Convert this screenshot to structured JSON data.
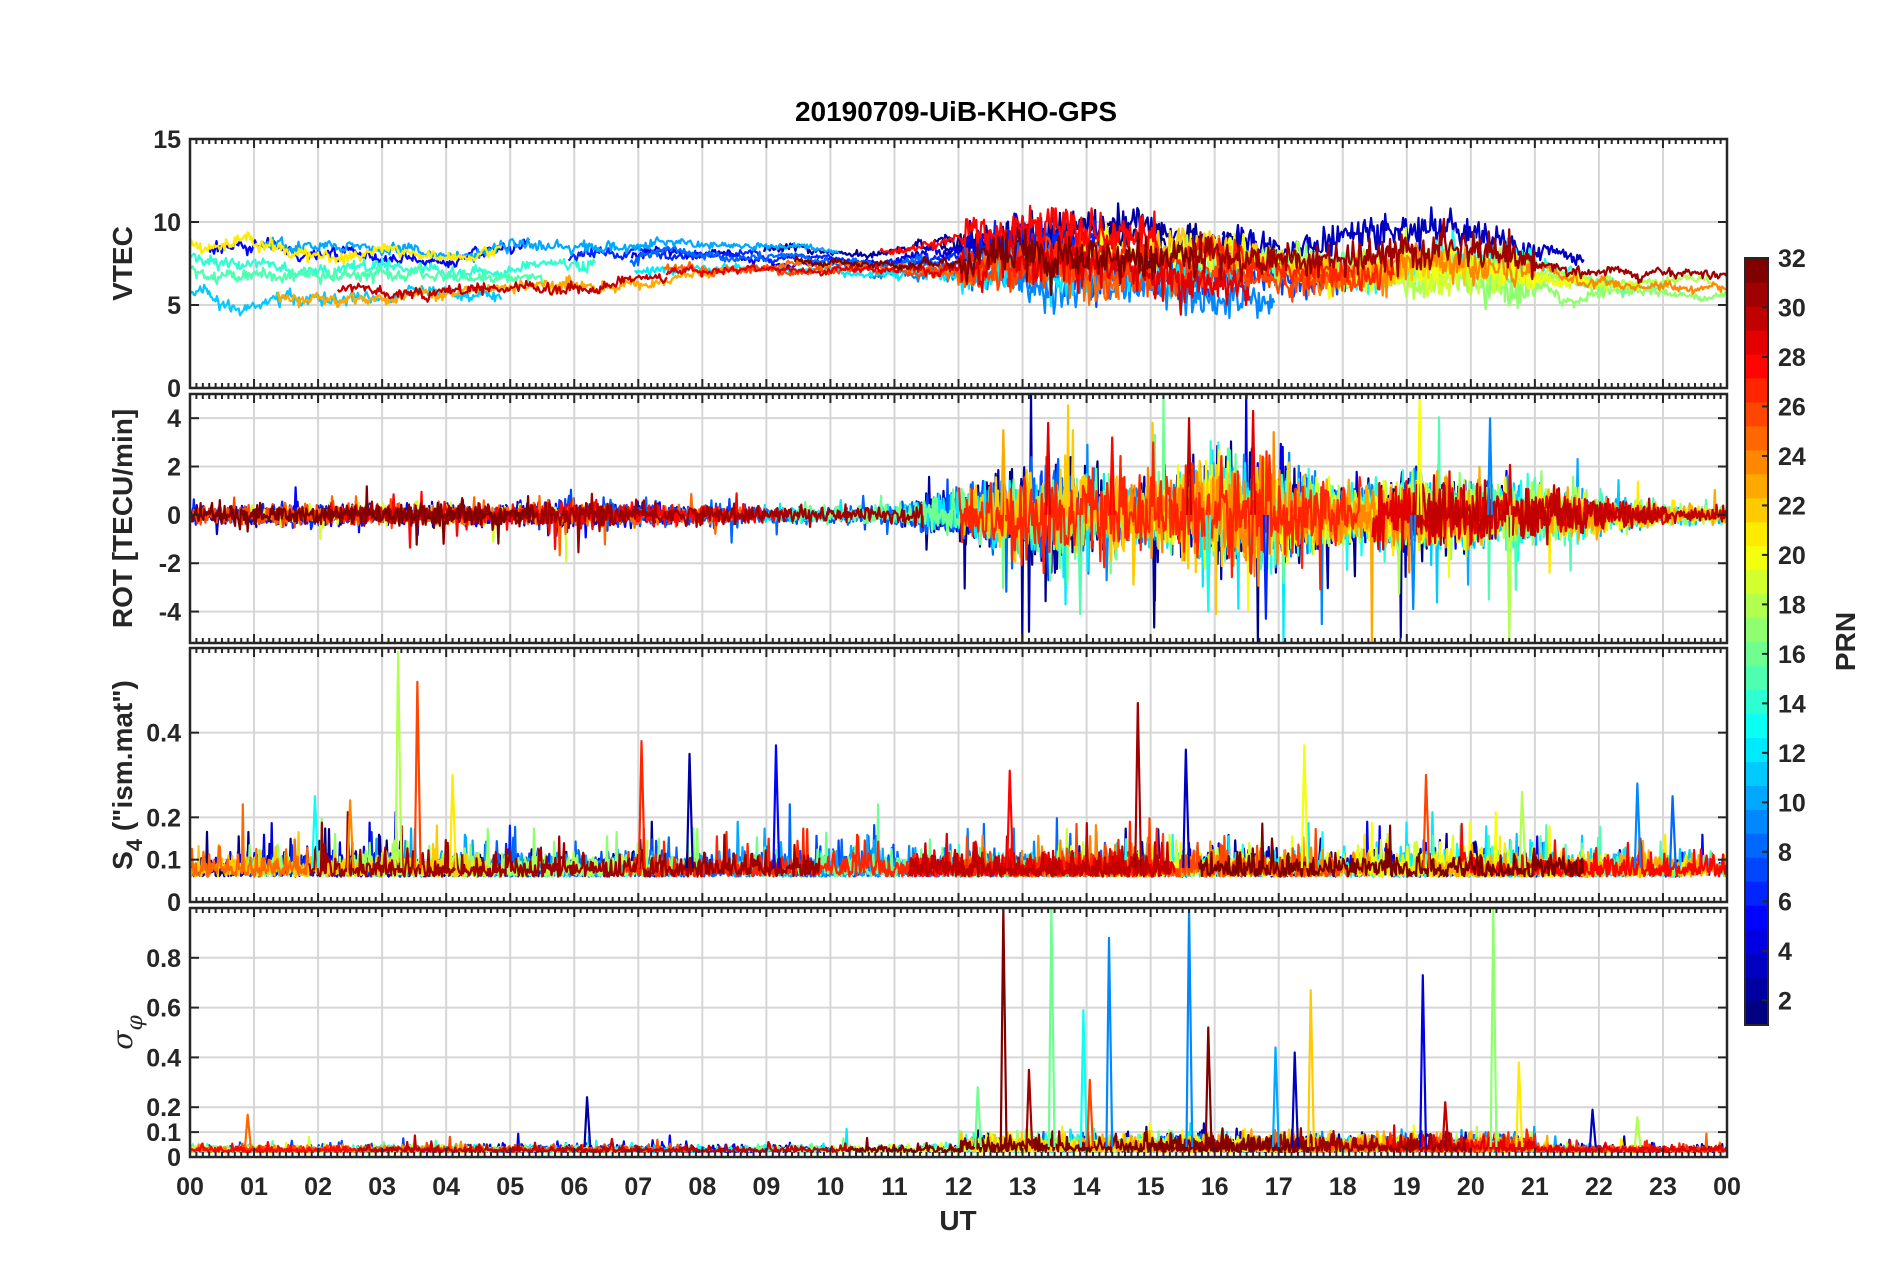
{
  "figure_title": "20190709-UiB-KHO-GPS",
  "chart_data": {
    "type": "line",
    "title": "20190709-UiB-KHO-GPS",
    "x": {
      "label": "UT",
      "range": [
        0,
        24
      ],
      "ticks": [
        0,
        1,
        2,
        3,
        4,
        5,
        6,
        7,
        8,
        9,
        10,
        11,
        12,
        13,
        14,
        15,
        16,
        17,
        18,
        19,
        20,
        21,
        22,
        23,
        24
      ],
      "tick_labels": [
        "00",
        "01",
        "02",
        "03",
        "04",
        "05",
        "06",
        "07",
        "08",
        "09",
        "10",
        "11",
        "12",
        "13",
        "14",
        "15",
        "16",
        "17",
        "18",
        "19",
        "20",
        "21",
        "22",
        "23",
        "00"
      ]
    },
    "panels": [
      {
        "id": "vtec",
        "ylabel": "VTEC",
        "ylim": [
          0,
          15
        ],
        "yticks": [
          0,
          5,
          10,
          15
        ],
        "ytick_labels": [
          "0",
          "5",
          "10",
          "15"
        ],
        "envelope": {
          "hours": [
            0,
            1,
            2,
            3,
            4,
            5,
            6,
            7,
            8,
            9,
            10,
            11,
            12,
            13,
            14,
            15,
            16,
            17,
            18,
            19,
            20,
            21,
            22,
            23,
            24
          ],
          "center": [
            7.8,
            7.4,
            7.2,
            7.3,
            7.0,
            7.2,
            7.5,
            7.7,
            7.8,
            7.8,
            7.6,
            7.5,
            7.9,
            8.3,
            8.0,
            7.9,
            7.6,
            7.2,
            7.0,
            7.3,
            7.5,
            7.0,
            6.5,
            6.2,
            6.5
          ],
          "spread": [
            1.3,
            1.5,
            1.3,
            1.3,
            1.1,
            1.1,
            1.3,
            1.1,
            0.9,
            0.8,
            0.7,
            0.8,
            1.4,
            1.8,
            1.8,
            1.6,
            1.5,
            1.3,
            1.3,
            1.6,
            1.6,
            1.4,
            1.2,
            0.9,
            0.8
          ]
        }
      },
      {
        "id": "rot",
        "ylabel": "ROT [TECU/min]",
        "ylim": [
          -5.3,
          5.0
        ],
        "yticks": [
          -4,
          -2,
          0,
          2,
          4
        ],
        "ytick_labels": [
          "-4",
          "-2",
          "0",
          "2",
          "4"
        ],
        "activity": {
          "hours": [
            0,
            1,
            2,
            3,
            4,
            5,
            6,
            7,
            8,
            9,
            10,
            11,
            12,
            13,
            14,
            15,
            16,
            17,
            18,
            19,
            20,
            21,
            22,
            23,
            24
          ],
          "amplitude": [
            0.35,
            0.4,
            0.35,
            0.35,
            0.4,
            0.4,
            0.5,
            0.4,
            0.35,
            0.3,
            0.3,
            0.35,
            0.9,
            1.6,
            1.6,
            1.2,
            2.0,
            1.7,
            0.9,
            1.3,
            1.1,
            1.0,
            0.6,
            0.35,
            0.3
          ]
        },
        "peaks": [
          {
            "t": 12.7,
            "v": 3.5
          },
          {
            "t": 13.4,
            "v": 3.8
          },
          {
            "t": 13.9,
            "v": -4.1
          },
          {
            "t": 15.6,
            "v": 4.0
          },
          {
            "t": 16.6,
            "v": 4.3
          },
          {
            "t": 16.8,
            "v": -4.3
          },
          {
            "t": 19.2,
            "v": 4.8
          },
          {
            "t": 19.1,
            "v": -3.9
          },
          {
            "t": 20.3,
            "v": 4.0
          },
          {
            "t": 20.6,
            "v": -5.2
          },
          {
            "t": 14.4,
            "v": 3.2
          },
          {
            "t": 15.9,
            "v": -4.0
          }
        ]
      },
      {
        "id": "s4",
        "ylabel": "S4 (\"ism.mat\")",
        "ylabel_main": "S",
        "ylabel_sub": "4",
        "ylabel_rest": " (\"ism.mat\")",
        "ylim": [
          0,
          0.6
        ],
        "yticks": [
          0,
          0.1,
          0.2,
          0.4
        ],
        "ytick_labels": [
          "0",
          "0.1",
          "0.2",
          "0.4"
        ],
        "baseline": 0.06,
        "spikes": [
          {
            "t": 3.25,
            "v": 0.59
          },
          {
            "t": 3.55,
            "v": 0.52
          },
          {
            "t": 7.05,
            "v": 0.38
          },
          {
            "t": 14.8,
            "v": 0.47
          },
          {
            "t": 15.55,
            "v": 0.36
          },
          {
            "t": 17.4,
            "v": 0.37
          },
          {
            "t": 9.15,
            "v": 0.37
          },
          {
            "t": 4.1,
            "v": 0.3
          },
          {
            "t": 7.8,
            "v": 0.35
          },
          {
            "t": 12.8,
            "v": 0.31
          },
          {
            "t": 19.3,
            "v": 0.3
          },
          {
            "t": 1.95,
            "v": 0.25
          },
          {
            "t": 2.5,
            "v": 0.24
          },
          {
            "t": 23.15,
            "v": 0.25
          },
          {
            "t": 20.8,
            "v": 0.26
          },
          {
            "t": 22.6,
            "v": 0.28
          }
        ]
      },
      {
        "id": "sigma",
        "ylabel": "σφ",
        "ylabel_main": "σ",
        "ylabel_sub": "φ",
        "ylim": [
          0,
          1.0
        ],
        "yticks": [
          0,
          0.1,
          0.2,
          0.4,
          0.6,
          0.8
        ],
        "ytick_labels": [
          "0",
          "0.1",
          "0.2",
          "0.4",
          "0.6",
          "0.8"
        ],
        "baseline": 0.02,
        "spikes": [
          {
            "t": 12.7,
            "v": 1.0
          },
          {
            "t": 13.45,
            "v": 1.0
          },
          {
            "t": 14.35,
            "v": 0.88
          },
          {
            "t": 15.6,
            "v": 1.0
          },
          {
            "t": 20.35,
            "v": 1.0
          },
          {
            "t": 19.25,
            "v": 0.73
          },
          {
            "t": 17.5,
            "v": 0.67
          },
          {
            "t": 13.95,
            "v": 0.59
          },
          {
            "t": 15.9,
            "v": 0.52
          },
          {
            "t": 16.95,
            "v": 0.44
          },
          {
            "t": 17.25,
            "v": 0.42
          },
          {
            "t": 20.75,
            "v": 0.38
          },
          {
            "t": 13.1,
            "v": 0.35
          },
          {
            "t": 12.3,
            "v": 0.28
          },
          {
            "t": 6.2,
            "v": 0.24
          },
          {
            "t": 0.9,
            "v": 0.17
          },
          {
            "t": 19.6,
            "v": 0.22
          },
          {
            "t": 21.9,
            "v": 0.19
          },
          {
            "t": 22.6,
            "v": 0.16
          },
          {
            "t": 14.05,
            "v": 0.31
          }
        ]
      }
    ],
    "colorbar": {
      "label": "PRN",
      "range": [
        1,
        32
      ],
      "ticks": [
        2,
        4,
        6,
        8,
        10,
        12,
        14,
        16,
        18,
        20,
        22,
        24,
        26,
        28,
        30,
        32
      ],
      "tick_labels": [
        "2",
        "4",
        "6",
        "8",
        "10",
        "12",
        "14",
        "16",
        "18",
        "20",
        "22",
        "24",
        "26",
        "28",
        "30",
        "32"
      ],
      "colormap": "jet"
    },
    "series_count": 32,
    "grid": true,
    "legend": "colorbar-right"
  }
}
